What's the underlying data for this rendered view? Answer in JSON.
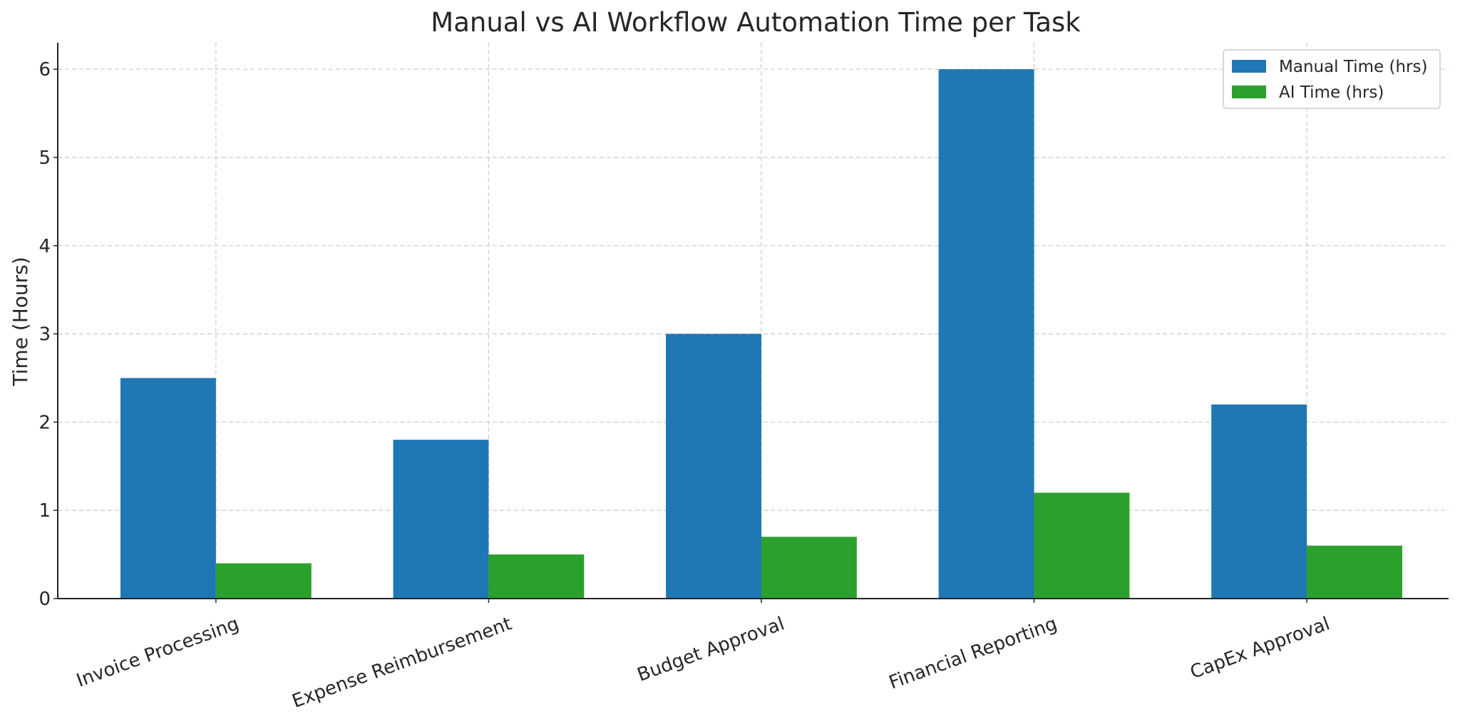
{
  "chart_data": {
    "type": "bar",
    "title": "Manual vs AI Workflow Automation Time per Task",
    "xlabel": "",
    "ylabel": "Time (Hours)",
    "categories": [
      "Invoice Processing",
      "Expense Reimbursement",
      "Budget Approval",
      "Financial Reporting",
      "CapEx Approval"
    ],
    "series": [
      {
        "name": "Manual Time (hrs)",
        "values": [
          2.5,
          1.8,
          3.0,
          6.0,
          2.2
        ],
        "color": "#1f77b4"
      },
      {
        "name": "AI Time (hrs)",
        "values": [
          0.4,
          0.5,
          0.7,
          1.2,
          0.6
        ],
        "color": "#2ca02c"
      }
    ],
    "ylim": [
      0,
      6.3
    ],
    "yticks": [
      0,
      1,
      2,
      3,
      4,
      5,
      6
    ],
    "grid": true,
    "legend_position": "top-right"
  }
}
